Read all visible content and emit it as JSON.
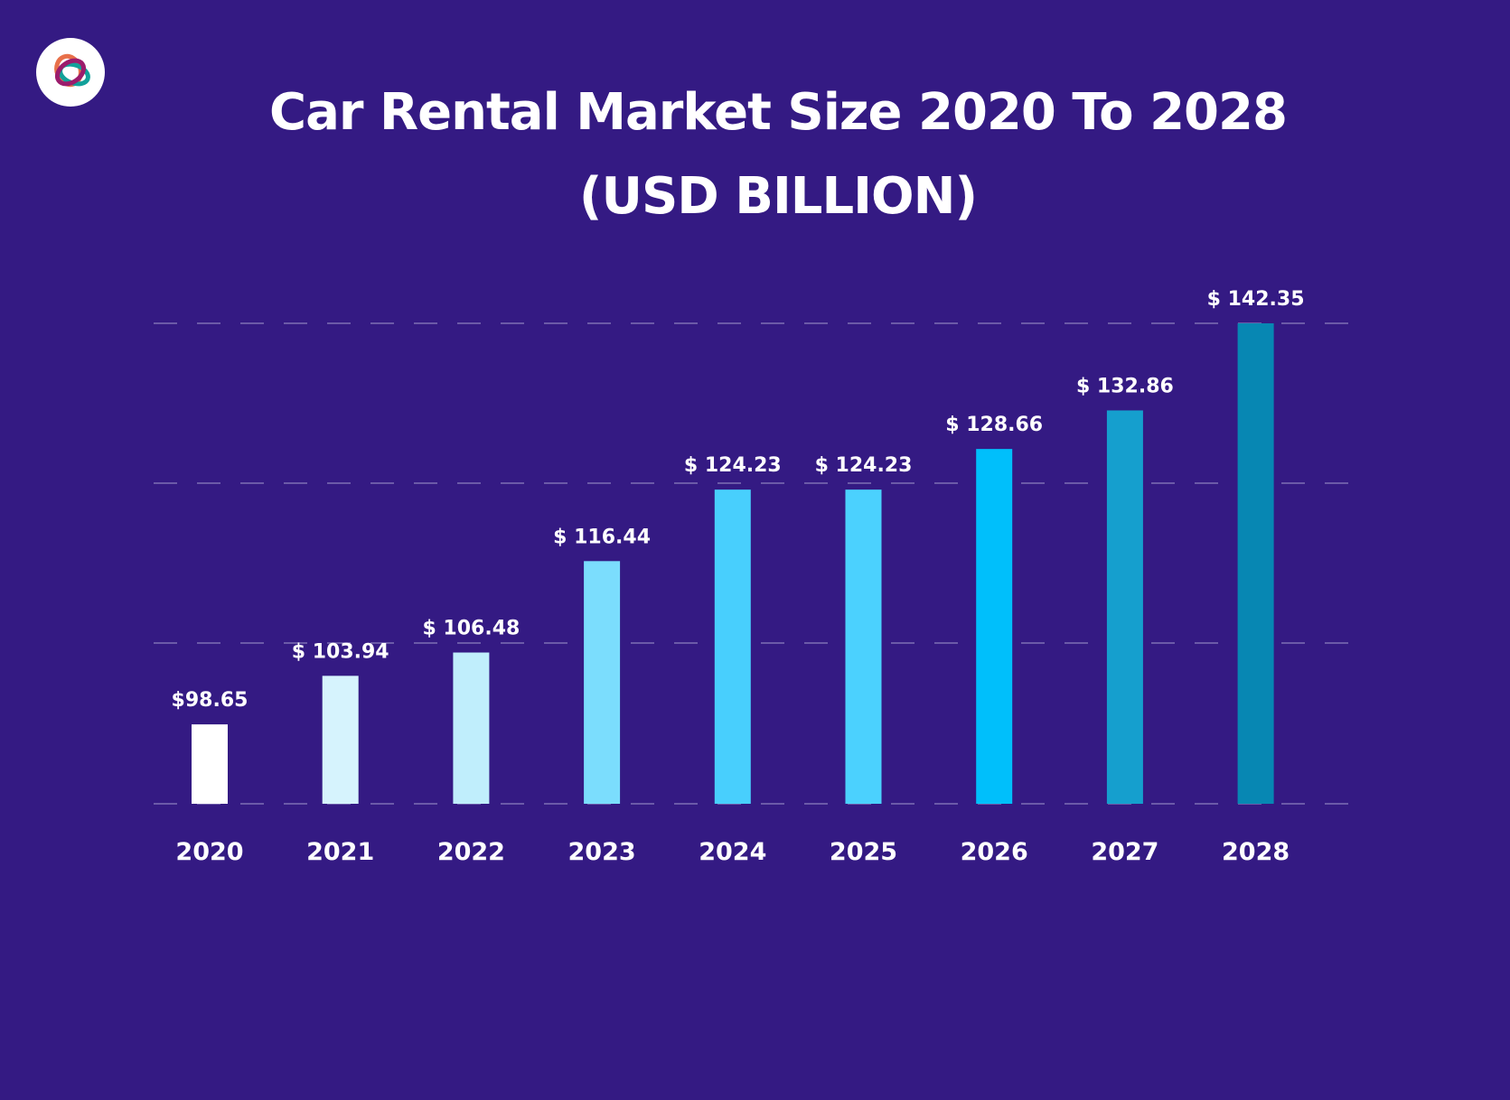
{
  "title_line1": "Car Rental Market Size 2020 To 2028",
  "title_line2": "(USD BILLION)",
  "logo": {
    "icon": "rings-logo-icon",
    "colors": [
      "#e8704a",
      "#9c1c6c",
      "#12a19a"
    ]
  },
  "background": "#341a83",
  "chart_data": {
    "type": "bar",
    "title": "Car Rental Market Size 2020 To 2028 (USD BILLION)",
    "xlabel": "",
    "ylabel": "",
    "categories": [
      "2020",
      "2021",
      "2022",
      "2023",
      "2024",
      "2025",
      "2026",
      "2027",
      "2028"
    ],
    "values": [
      98.65,
      103.94,
      106.48,
      116.44,
      124.23,
      124.23,
      128.66,
      132.86,
      142.35
    ],
    "data_labels": [
      "$98.65",
      "$ 103.94",
      "$ 106.48",
      "$ 116.44",
      "$ 124.23",
      "$ 124.23",
      "$ 128.66",
      "$ 132.86",
      "$ 142.35"
    ],
    "colors": [
      "#ffffff",
      "#d6f3fd",
      "#c0eefc",
      "#7bddfd",
      "#48cffd",
      "#4bd1fe",
      "#00bffb",
      "#159fce",
      "#0787b3"
    ],
    "ylim": [
      90,
      142.35
    ],
    "grid": true,
    "grid_style": "dashed",
    "legend": "none"
  }
}
